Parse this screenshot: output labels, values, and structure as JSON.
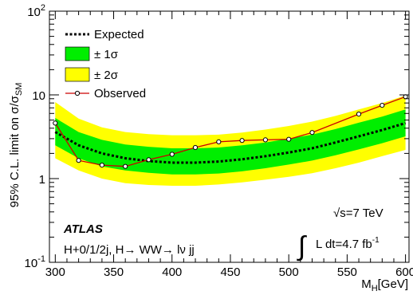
{
  "chart_data": {
    "type": "line",
    "title": "",
    "xlabel": "M",
    "xlabel_sub": "H",
    "xlabel_unit": "[GeV]",
    "ylabel": "95% C.L. limit on σ/σ",
    "ylabel_sub": "SM",
    "xlim": [
      295,
      603
    ],
    "ylim": [
      0.1,
      100
    ],
    "yscale": "log",
    "x_ticks": [
      "300",
      "350",
      "400",
      "450",
      "500",
      "550",
      "600"
    ],
    "x_tick_values": [
      300,
      350,
      400,
      450,
      500,
      550,
      600
    ],
    "y_ticks": [
      {
        "base": "10",
        "exp": "-1",
        "value": 0.1
      },
      {
        "base": "1",
        "exp": "",
        "value": 1
      },
      {
        "base": "10",
        "exp": "",
        "value": 10
      },
      {
        "base": "10",
        "exp": "2",
        "value": 100
      }
    ],
    "x": [
      300,
      320,
      340,
      360,
      380,
      400,
      420,
      440,
      460,
      480,
      500,
      520,
      540,
      560,
      580,
      600
    ],
    "series": [
      {
        "name": "Expected",
        "style": "dashed",
        "color": "#000000",
        "values": [
          3.6,
          2.5,
          2.0,
          1.75,
          1.62,
          1.55,
          1.55,
          1.6,
          1.7,
          1.85,
          2.05,
          2.3,
          2.7,
          3.2,
          3.8,
          4.6
        ]
      },
      {
        "name": "Observed",
        "style": "solid-markers",
        "color": "#cc0000",
        "values": [
          4.6,
          1.65,
          1.45,
          1.4,
          1.68,
          1.95,
          2.35,
          2.75,
          2.85,
          2.9,
          2.95,
          3.55,
          null,
          5.9,
          7.5,
          9.5
        ]
      }
    ],
    "bands": [
      {
        "name": "± 2σ",
        "color": "#ffff00",
        "upper": [
          8.2,
          5.2,
          4.1,
          3.6,
          3.4,
          3.3,
          3.3,
          3.35,
          3.55,
          3.85,
          4.25,
          4.8,
          5.6,
          6.7,
          8.0,
          9.8
        ],
        "lower": [
          1.75,
          1.25,
          1.0,
          0.88,
          0.84,
          0.82,
          0.82,
          0.85,
          0.9,
          0.97,
          1.05,
          1.16,
          1.33,
          1.55,
          1.85,
          2.2
        ]
      },
      {
        "name": "± 1σ",
        "color": "#00ee00",
        "upper": [
          5.3,
          3.6,
          2.9,
          2.55,
          2.4,
          2.3,
          2.3,
          2.35,
          2.5,
          2.7,
          3.0,
          3.35,
          3.9,
          4.65,
          5.5,
          6.7
        ],
        "lower": [
          2.5,
          1.75,
          1.4,
          1.25,
          1.17,
          1.12,
          1.12,
          1.15,
          1.22,
          1.33,
          1.47,
          1.64,
          1.9,
          2.23,
          2.65,
          3.2
        ]
      }
    ],
    "observed_x": [
      300,
      320,
      340,
      360,
      380,
      400,
      420,
      440,
      460,
      480,
      500,
      520,
      560,
      580,
      600
    ],
    "observed_y": [
      4.6,
      1.65,
      1.45,
      1.4,
      1.68,
      1.95,
      2.35,
      2.75,
      2.85,
      2.9,
      2.95,
      3.55,
      5.9,
      7.5,
      9.5
    ],
    "legend": {
      "placement": "top-left",
      "entries": [
        {
          "label": "Expected",
          "kind": "dashed-line"
        },
        {
          "label": "± 1σ",
          "kind": "box",
          "color": "#00ee00"
        },
        {
          "label": "± 2σ",
          "kind": "box",
          "color": "#ffff00"
        },
        {
          "label": "Observed",
          "kind": "line-marker",
          "color": "#cc0000"
        }
      ]
    },
    "annotations": {
      "atlas": "ATLAS",
      "channel": "H+0/1/2j, H→ WW→ lν jj",
      "energy": "√s=7 TeV",
      "lumi_integral": "∫",
      "lumi_text": "L dt=4.7 fb",
      "lumi_exp": "-1"
    }
  }
}
